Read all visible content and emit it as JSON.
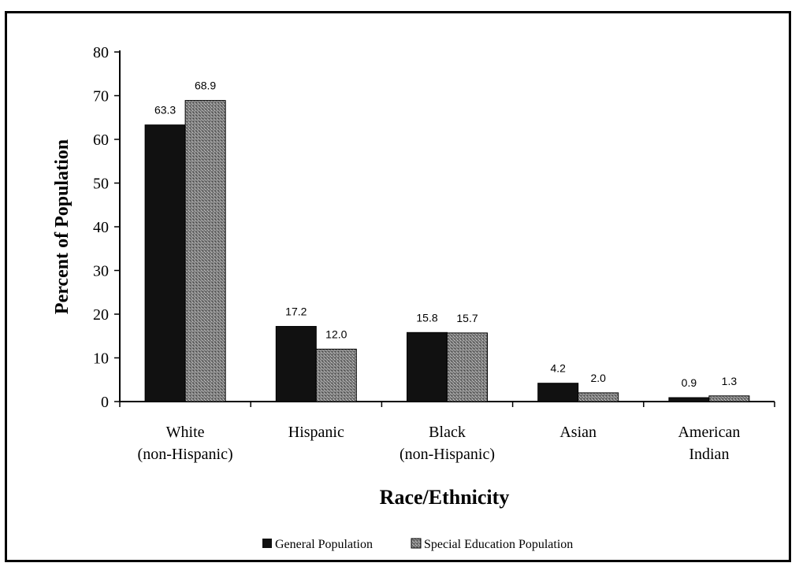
{
  "colors": {
    "general": "#111111",
    "special": "#8a8a8a"
  },
  "chart_data": {
    "type": "bar",
    "categories": [
      [
        "White",
        "(non-Hispanic)"
      ],
      [
        "Hispanic"
      ],
      [
        "Black",
        "(non-Hispanic)"
      ],
      [
        "Asian"
      ],
      [
        "American",
        "Indian"
      ]
    ],
    "series": [
      {
        "name": "General Population",
        "values": [
          63.3,
          17.2,
          15.8,
          4.2,
          0.9
        ],
        "labels": [
          "63.3",
          "17.2",
          "15.8",
          "4.2",
          "0.9"
        ]
      },
      {
        "name": "Special Education Population",
        "values": [
          68.9,
          12.0,
          15.7,
          2.0,
          1.3
        ],
        "labels": [
          "68.9",
          "12.0",
          "15.7",
          "2.0",
          "1.3"
        ]
      }
    ],
    "title": "",
    "xlabel": "Race/Ethnicity",
    "ylabel": "Percent of Population",
    "ylim": [
      0,
      80
    ],
    "yticks": [
      0,
      10,
      20,
      30,
      40,
      50,
      60,
      70,
      80
    ],
    "grid": false,
    "legend_position": "bottom"
  }
}
